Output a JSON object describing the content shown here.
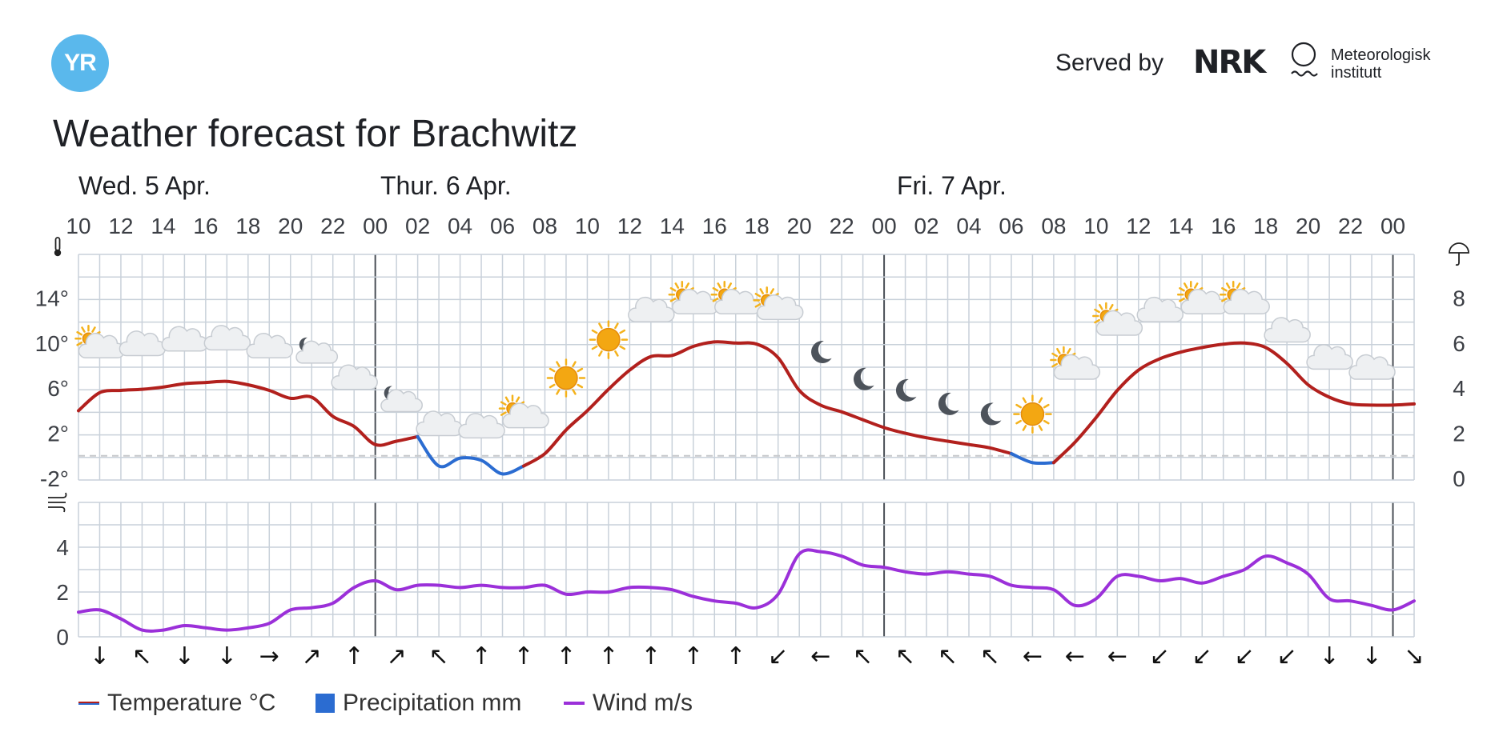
{
  "header": {
    "logo_text": "YR",
    "served_by": "Served by",
    "nrk_text": "NRK",
    "met_line1": "Meteorologisk",
    "met_line2": "institutt",
    "title": "Weather forecast for Brachwitz"
  },
  "legend": {
    "temperature": "Temperature °C",
    "precipitation": "Precipitation mm",
    "wind": "Wind m/s"
  },
  "colors": {
    "temp_warm": "#b2201d",
    "temp_cold": "#2b6cd1",
    "wind": "#9b30d9",
    "grid": "#c9d1da",
    "day_line": "#4a4f57"
  },
  "chart_data": {
    "type": "line",
    "days": [
      "Wed. 5 Apr.",
      "Thur. 6 Apr.",
      "Fri. 7 Apr."
    ],
    "hour_labels": [
      "10",
      "12",
      "14",
      "16",
      "18",
      "20",
      "22",
      "00",
      "02",
      "04",
      "06",
      "08",
      "10",
      "12",
      "14",
      "16",
      "18",
      "20",
      "22",
      "00",
      "02",
      "04",
      "06",
      "08",
      "10",
      "12",
      "14",
      "16",
      "18",
      "20",
      "22",
      "00"
    ],
    "x_start_hour": 10,
    "x_end_hour": 73,
    "temperature_axis": {
      "ticks": [
        "14°",
        "10°",
        "6°",
        "2°",
        "-2°"
      ],
      "values": [
        14,
        10,
        6,
        2,
        -2
      ],
      "ylim": [
        -2,
        18
      ],
      "icon": "thermometer-icon"
    },
    "precip_axis": {
      "ticks": [
        "8",
        "6",
        "4",
        "2",
        "0"
      ],
      "values": [
        8,
        6,
        4,
        2,
        0
      ],
      "icon": "umbrella-icon"
    },
    "wind_axis": {
      "ticks": [
        "4",
        "2",
        "0"
      ],
      "values": [
        4,
        2,
        0
      ],
      "ylim": [
        0,
        6
      ],
      "icon": "wind-icon"
    },
    "series": [
      {
        "name": "Temperature °C",
        "x": [
          10,
          11,
          12,
          13,
          14,
          15,
          16,
          17,
          18,
          19,
          20,
          21,
          22,
          23,
          24,
          25,
          26,
          27,
          28,
          29,
          30,
          31,
          32,
          33,
          34,
          35,
          36,
          37,
          38,
          39,
          40,
          41,
          42,
          43,
          44,
          45,
          46,
          47,
          48,
          49,
          50,
          51,
          52,
          53,
          54,
          55,
          56,
          57,
          58,
          59,
          60,
          61,
          62,
          63,
          64,
          65,
          66,
          67,
          68,
          69,
          70,
          71,
          72,
          73
        ],
        "values": [
          4.0,
          5.6,
          5.8,
          5.9,
          6.1,
          6.4,
          6.5,
          6.6,
          6.3,
          5.8,
          5.1,
          5.2,
          3.5,
          2.6,
          1.0,
          1.3,
          1.7,
          -0.9,
          -0.2,
          -0.4,
          -1.6,
          -0.9,
          0.2,
          2.3,
          4.0,
          5.9,
          7.6,
          8.8,
          8.9,
          9.7,
          10.1,
          10.0,
          9.9,
          8.7,
          5.8,
          4.5,
          3.9,
          3.2,
          2.5,
          2.0,
          1.6,
          1.3,
          1.0,
          0.7,
          0.2,
          -0.6,
          -0.6,
          1.2,
          3.4,
          5.8,
          7.6,
          8.6,
          9.2,
          9.6,
          9.9,
          10.0,
          9.6,
          8.2,
          6.3,
          5.2,
          4.6,
          4.5,
          4.5,
          4.6
        ]
      },
      {
        "name": "Wind m/s",
        "x": [
          10,
          11,
          12,
          13,
          14,
          15,
          16,
          17,
          18,
          19,
          20,
          21,
          22,
          23,
          24,
          25,
          26,
          27,
          28,
          29,
          30,
          31,
          32,
          33,
          34,
          35,
          36,
          37,
          38,
          39,
          40,
          41,
          42,
          43,
          44,
          45,
          46,
          47,
          48,
          49,
          50,
          51,
          52,
          53,
          54,
          55,
          56,
          57,
          58,
          59,
          60,
          61,
          62,
          63,
          64,
          65,
          66,
          67,
          68,
          69,
          70,
          71,
          72,
          73
        ],
        "values": [
          1.1,
          1.2,
          0.8,
          0.3,
          0.3,
          0.5,
          0.4,
          0.3,
          0.4,
          0.6,
          1.2,
          1.3,
          1.5,
          2.2,
          2.5,
          2.1,
          2.3,
          2.3,
          2.2,
          2.3,
          2.2,
          2.2,
          2.3,
          1.9,
          2.0,
          2.0,
          2.2,
          2.2,
          2.1,
          1.8,
          1.6,
          1.5,
          1.3,
          1.9,
          3.7,
          3.8,
          3.6,
          3.2,
          3.1,
          2.9,
          2.8,
          2.9,
          2.8,
          2.7,
          2.3,
          2.2,
          2.1,
          1.4,
          1.7,
          2.7,
          2.7,
          2.5,
          2.6,
          2.4,
          2.7,
          3.0,
          3.6,
          3.3,
          2.8,
          1.7,
          1.6,
          1.4,
          1.2,
          1.6
        ]
      }
    ],
    "weather_symbols": [
      {
        "hour": 11,
        "temp": 9.4,
        "symbol": "partly-sunny-cloud"
      },
      {
        "hour": 13,
        "temp": 9.6,
        "symbol": "cloud"
      },
      {
        "hour": 15,
        "temp": 10.0,
        "symbol": "cloud"
      },
      {
        "hour": 17,
        "temp": 10.1,
        "symbol": "cloud"
      },
      {
        "hour": 19,
        "temp": 9.4,
        "symbol": "cloud"
      },
      {
        "hour": 21,
        "temp": 9.0,
        "symbol": "partly-moon-cloud"
      },
      {
        "hour": 23,
        "temp": 6.6,
        "symbol": "cloud"
      },
      {
        "hour": 25,
        "temp": 4.7,
        "symbol": "partly-moon-cloud"
      },
      {
        "hour": 27,
        "temp": 2.5,
        "symbol": "cloud"
      },
      {
        "hour": 29,
        "temp": 2.3,
        "symbol": "cloud"
      },
      {
        "hour": 31,
        "temp": 3.2,
        "symbol": "partly-sunny-cloud"
      },
      {
        "hour": 33,
        "temp": 6.9,
        "symbol": "sun"
      },
      {
        "hour": 35,
        "temp": 10.3,
        "symbol": "sun"
      },
      {
        "hour": 37,
        "temp": 12.6,
        "symbol": "cloud"
      },
      {
        "hour": 39,
        "temp": 13.3,
        "symbol": "partly-sunny-cloud"
      },
      {
        "hour": 41,
        "temp": 13.3,
        "symbol": "partly-sunny-cloud"
      },
      {
        "hour": 43,
        "temp": 12.8,
        "symbol": "partly-sunny-cloud"
      },
      {
        "hour": 45,
        "temp": 9.2,
        "symbol": "moon"
      },
      {
        "hour": 47,
        "temp": 6.8,
        "symbol": "moon"
      },
      {
        "hour": 49,
        "temp": 5.8,
        "symbol": "moon"
      },
      {
        "hour": 51,
        "temp": 4.6,
        "symbol": "moon"
      },
      {
        "hour": 53,
        "temp": 3.7,
        "symbol": "moon"
      },
      {
        "hour": 55,
        "temp": 3.7,
        "symbol": "sun"
      },
      {
        "hour": 57,
        "temp": 7.5,
        "symbol": "partly-sunny-cloud"
      },
      {
        "hour": 59,
        "temp": 11.4,
        "symbol": "partly-sunny-cloud"
      },
      {
        "hour": 61,
        "temp": 12.6,
        "symbol": "cloud"
      },
      {
        "hour": 63,
        "temp": 13.3,
        "symbol": "partly-sunny-cloud"
      },
      {
        "hour": 65,
        "temp": 13.3,
        "symbol": "partly-sunny-cloud"
      },
      {
        "hour": 67,
        "temp": 10.8,
        "symbol": "cloud"
      },
      {
        "hour": 69,
        "temp": 8.4,
        "symbol": "cloud"
      },
      {
        "hour": 71,
        "temp": 7.5,
        "symbol": "cloud"
      }
    ],
    "wind_directions": [
      {
        "hour": 11,
        "arrow": "↓"
      },
      {
        "hour": 13,
        "arrow": "↖"
      },
      {
        "hour": 15,
        "arrow": "↓"
      },
      {
        "hour": 17,
        "arrow": "↓"
      },
      {
        "hour": 19,
        "arrow": "→"
      },
      {
        "hour": 21,
        "arrow": "↗"
      },
      {
        "hour": 23,
        "arrow": "↑"
      },
      {
        "hour": 25,
        "arrow": "↗"
      },
      {
        "hour": 27,
        "arrow": "↖"
      },
      {
        "hour": 29,
        "arrow": "↑"
      },
      {
        "hour": 31,
        "arrow": "↑"
      },
      {
        "hour": 33,
        "arrow": "↑"
      },
      {
        "hour": 35,
        "arrow": "↑"
      },
      {
        "hour": 37,
        "arrow": "↑"
      },
      {
        "hour": 39,
        "arrow": "↑"
      },
      {
        "hour": 41,
        "arrow": "↑"
      },
      {
        "hour": 43,
        "arrow": "↙"
      },
      {
        "hour": 45,
        "arrow": "←"
      },
      {
        "hour": 47,
        "arrow": "↖"
      },
      {
        "hour": 49,
        "arrow": "↖"
      },
      {
        "hour": 51,
        "arrow": "↖"
      },
      {
        "hour": 53,
        "arrow": "↖"
      },
      {
        "hour": 55,
        "arrow": "←"
      },
      {
        "hour": 57,
        "arrow": "←"
      },
      {
        "hour": 59,
        "arrow": "←"
      },
      {
        "hour": 61,
        "arrow": "↙"
      },
      {
        "hour": 63,
        "arrow": "↙"
      },
      {
        "hour": 65,
        "arrow": "↙"
      },
      {
        "hour": 67,
        "arrow": "↙"
      },
      {
        "hour": 69,
        "arrow": "↓"
      },
      {
        "hour": 71,
        "arrow": "↓"
      },
      {
        "hour": 73,
        "arrow": "↘"
      }
    ]
  }
}
